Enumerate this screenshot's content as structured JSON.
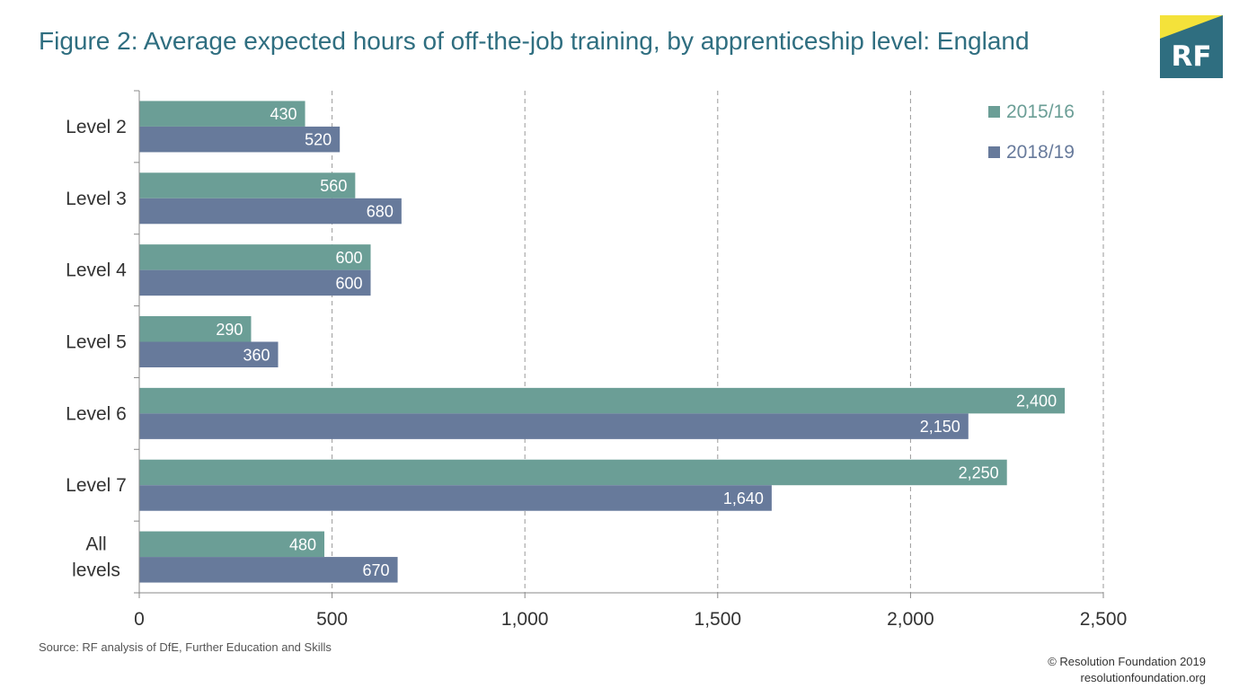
{
  "title": "Figure 2: Average expected hours of off-the-job training, by apprenticeship level: England",
  "logo": {
    "text": "RF",
    "icon": "rf-logo-icon",
    "colors": {
      "background": "#2f6e80",
      "corner": "#f4e23a"
    }
  },
  "source": "Source: RF analysis of DfE, Further Education and Skills",
  "footer": {
    "copyright": "© Resolution Foundation 2019",
    "website": "resolutionfoundation.org"
  },
  "chart_data": {
    "type": "bar",
    "orientation": "horizontal",
    "categories": [
      "Level 2",
      "Level 3",
      "Level 4",
      "Level 5",
      "Level 6",
      "Level 7",
      "All levels"
    ],
    "category_lines": [
      [
        "Level 2"
      ],
      [
        "Level 3"
      ],
      [
        "Level 4"
      ],
      [
        "Level 5"
      ],
      [
        "Level 6"
      ],
      [
        "Level 7"
      ],
      [
        "All",
        "levels"
      ]
    ],
    "series": [
      {
        "name": "2015/16",
        "color": "#6b9e96",
        "values": [
          430,
          560,
          600,
          290,
          2400,
          2250,
          480
        ],
        "labels": [
          "430",
          "560",
          "600",
          "290",
          "2,400",
          "2,250",
          "480"
        ]
      },
      {
        "name": "2018/19",
        "color": "#677a9b",
        "values": [
          520,
          680,
          600,
          360,
          2150,
          1640,
          670
        ],
        "labels": [
          "520",
          "680",
          "600",
          "360",
          "2,150",
          "1,640",
          "670"
        ]
      }
    ],
    "xlim": [
      0,
      2500
    ],
    "xticks": [
      0,
      500,
      1000,
      1500,
      2000,
      2500
    ],
    "xtick_labels": [
      "0",
      "500",
      "1,000",
      "1,500",
      "2,000",
      "2,500"
    ],
    "grid": "vertical dashed",
    "legend_position": "top-right"
  }
}
